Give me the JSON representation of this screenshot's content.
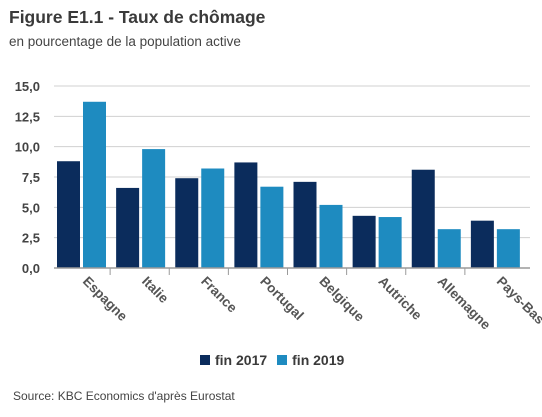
{
  "title": "Figure E1.1 - Taux de chômage",
  "subtitle": "en pourcentage de la population active",
  "source": "Source: KBC Economics d'après Eurostat",
  "colors": {
    "fin_2017": "#0b2c5c",
    "fin_2019": "#1e8bc0"
  },
  "chart_data": {
    "type": "bar",
    "title": "Figure E1.1 - Taux de chômage",
    "ylabel": "",
    "xlabel": "",
    "ylim": [
      0,
      15
    ],
    "yticks": [
      "0,0",
      "2,5",
      "5,0",
      "7,5",
      "10,0",
      "12,5",
      "15,0"
    ],
    "grid": true,
    "legend_position": "bottom",
    "categories": [
      "Espagne",
      "Italie",
      "France",
      "Portugal",
      "Belgique",
      "Autriche",
      "Allemagne",
      "Pays-Bas"
    ],
    "series": [
      {
        "name": "fin 2017",
        "values": [
          8.8,
          6.6,
          7.4,
          8.7,
          7.1,
          4.3,
          8.1,
          3.9
        ]
      },
      {
        "name": "fin 2019",
        "values": [
          13.7,
          9.8,
          8.2,
          6.7,
          5.2,
          4.2,
          3.2,
          3.2
        ]
      }
    ]
  }
}
